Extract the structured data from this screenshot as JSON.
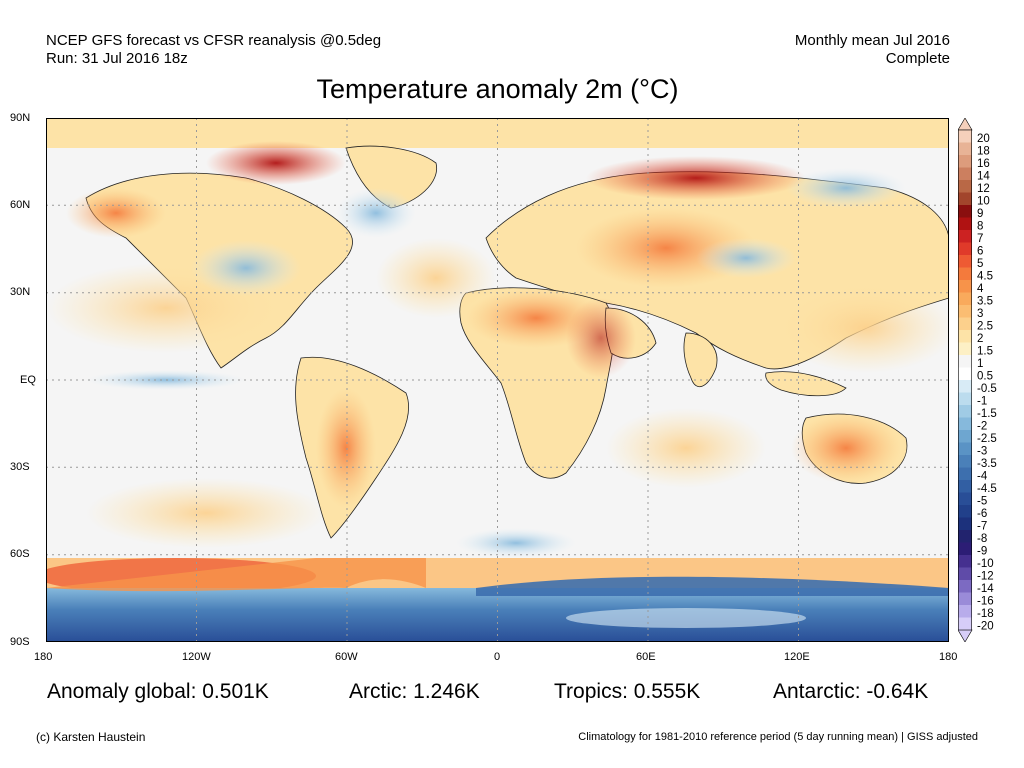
{
  "header": {
    "left_line1": "NCEP GFS forecast vs CFSR reanalysis @0.5deg",
    "left_line2": "Run: 31 Jul 2016 18z",
    "right_line1": "Monthly mean Jul 2016",
    "right_line2": "Complete"
  },
  "title": "Temperature anomaly 2m (°C)",
  "axes": {
    "lat_labels": [
      "90N",
      "60N",
      "30N",
      "EQ",
      "30S",
      "60S",
      "90S"
    ],
    "lon_labels": [
      "180",
      "120W",
      "60W",
      "0",
      "60E",
      "120E",
      "180"
    ]
  },
  "colorbar": {
    "levels": [
      "20",
      "18",
      "16",
      "14",
      "12",
      "10",
      "9",
      "8",
      "7",
      "6",
      "5",
      "4.5",
      "4",
      "3.5",
      "3",
      "2.5",
      "2",
      "1.5",
      "1",
      "0.5",
      "-0.5",
      "-1",
      "-1.5",
      "-2",
      "-2.5",
      "-3",
      "-3.5",
      "-4",
      "-4.5",
      "-5",
      "-6",
      "-7",
      "-8",
      "-9",
      "-10",
      "-12",
      "-14",
      "-16",
      "-18",
      "-20"
    ],
    "colors": [
      "#f5d0bb",
      "#e8b396",
      "#dd9c7c",
      "#cc7f5f",
      "#b96846",
      "#a2452c",
      "#8a0f0f",
      "#b01212",
      "#cc2222",
      "#e03a2a",
      "#ee5a33",
      "#f47a3c",
      "#f7934a",
      "#f9aa5c",
      "#fbbd72",
      "#fcd08c",
      "#fde3a7",
      "#fdf0c5",
      "#f5f5f5",
      "#ffffff",
      "#d8ebf6",
      "#bcdcee",
      "#a0cbe5",
      "#86b9dc",
      "#6ea6d0",
      "#5a93c5",
      "#4a80b9",
      "#3d6fae",
      "#325fa3",
      "#294e97",
      "#21408a",
      "#1c317c",
      "#22236e",
      "#2c1d75",
      "#45308f",
      "#5f4ba8",
      "#7c6ac2",
      "#9a8bd8",
      "#b8aceb",
      "#d6cdf8"
    ]
  },
  "stats": {
    "global": "Anomaly global: 0.501K",
    "arctic": "Arctic: 1.246K",
    "tropics": "Tropics: 0.555K",
    "antarctic": "Antarctic: -0.64K"
  },
  "footer": {
    "credit": "(c) Karsten Haustein",
    "note": "Climatology for 1981-2010 reference period (5 day running mean) | GISS adjusted"
  }
}
